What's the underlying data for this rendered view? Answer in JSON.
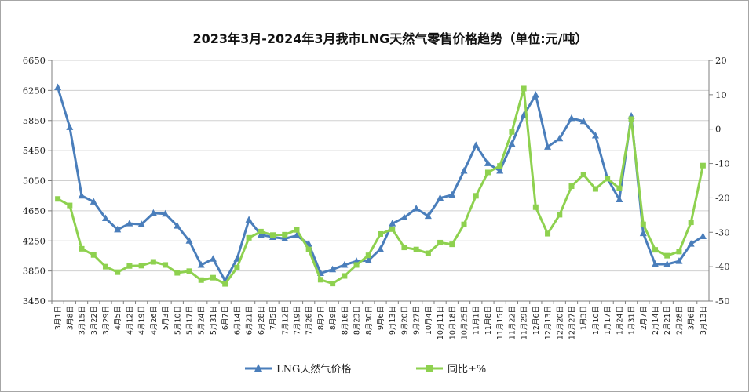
{
  "chart_data": {
    "type": "line",
    "title": "2023年3月-2024年3月我市LNG天然气零售价格趋势（单位:元/吨）",
    "categories": [
      "3月1日",
      "3月8日",
      "3月15日",
      "3月22日",
      "3月29日",
      "4月5日",
      "4月12日",
      "4月19日",
      "4月26日",
      "5月3日",
      "5月10日",
      "5月17日",
      "5月24日",
      "5月31日",
      "6月7日",
      "6月14日",
      "6月21日",
      "6月28日",
      "7月5日",
      "7月12日",
      "7月19日",
      "7月26日",
      "8月2日",
      "8月9日",
      "8月16日",
      "8月23日",
      "8月30日",
      "9月6日",
      "9月13日",
      "9月20日",
      "9月27日",
      "10月4日",
      "10月11日",
      "10月18日",
      "10月25日",
      "11月1日",
      "11月8日",
      "11月15日",
      "11月22日",
      "11月29日",
      "12月6日",
      "12月13日",
      "12月20日",
      "12月27日",
      "1月3日",
      "1月10日",
      "1月17日",
      "1月24日",
      "1月31日",
      "2月7日",
      "2月14日",
      "2月21日",
      "2月28日",
      "3月6日",
      "3月13日"
    ],
    "left_axis": {
      "min": 3450,
      "max": 6650,
      "ticks": [
        "3450",
        "3850",
        "4250",
        "4650",
        "5050",
        "5450",
        "5850",
        "6250",
        "6650"
      ]
    },
    "right_axis": {
      "min": -50,
      "max": 20,
      "ticks": [
        "-50",
        "-40",
        "-30",
        "-20",
        "-10",
        "0",
        "10",
        "20"
      ]
    },
    "series": [
      {
        "name": "LNG天然气价格",
        "axis": "left",
        "color": "#4a7ebb",
        "marker": "triangle",
        "values": [
          6290,
          5760,
          4850,
          4770,
          4550,
          4400,
          4480,
          4470,
          4620,
          4610,
          4450,
          4250,
          3930,
          4010,
          3720,
          4010,
          4530,
          4330,
          4300,
          4280,
          4320,
          4210,
          3820,
          3870,
          3930,
          3980,
          3990,
          4140,
          4480,
          4560,
          4680,
          4580,
          4820,
          4860,
          5180,
          5520,
          5280,
          5180,
          5540,
          5920,
          6190,
          5500,
          5610,
          5880,
          5840,
          5650,
          5080,
          4800,
          5910,
          4350,
          3940,
          3940,
          3980,
          4210,
          4310
        ]
      },
      {
        "name": "同比±%",
        "axis": "right",
        "color": "#8ed14f",
        "marker": "square",
        "values": [
          -20.3,
          -22.2,
          -34.8,
          -36.6,
          -40,
          -41.6,
          -39.8,
          -39.7,
          -38.6,
          -39.5,
          -41.8,
          -41.3,
          -43.9,
          -43.2,
          -45,
          -40.3,
          -31.6,
          -29.8,
          -30.8,
          -30.7,
          -29.3,
          -35,
          -43.8,
          -44.9,
          -42.7,
          -39.5,
          -36.7,
          -30.5,
          -29.1,
          -34.4,
          -35,
          -36.1,
          -33,
          -33.5,
          -27.7,
          -19.4,
          -12.6,
          -10.7,
          -0.8,
          11.8,
          -22.7,
          -30.4,
          -24.9,
          -16.6,
          -13.2,
          -17.4,
          -14.4,
          -17.2,
          2.9,
          -27.7,
          -35.1,
          -36.8,
          -35.6,
          -27.1,
          -10.6
        ]
      }
    ],
    "legend_position": "bottom",
    "grid": true
  }
}
